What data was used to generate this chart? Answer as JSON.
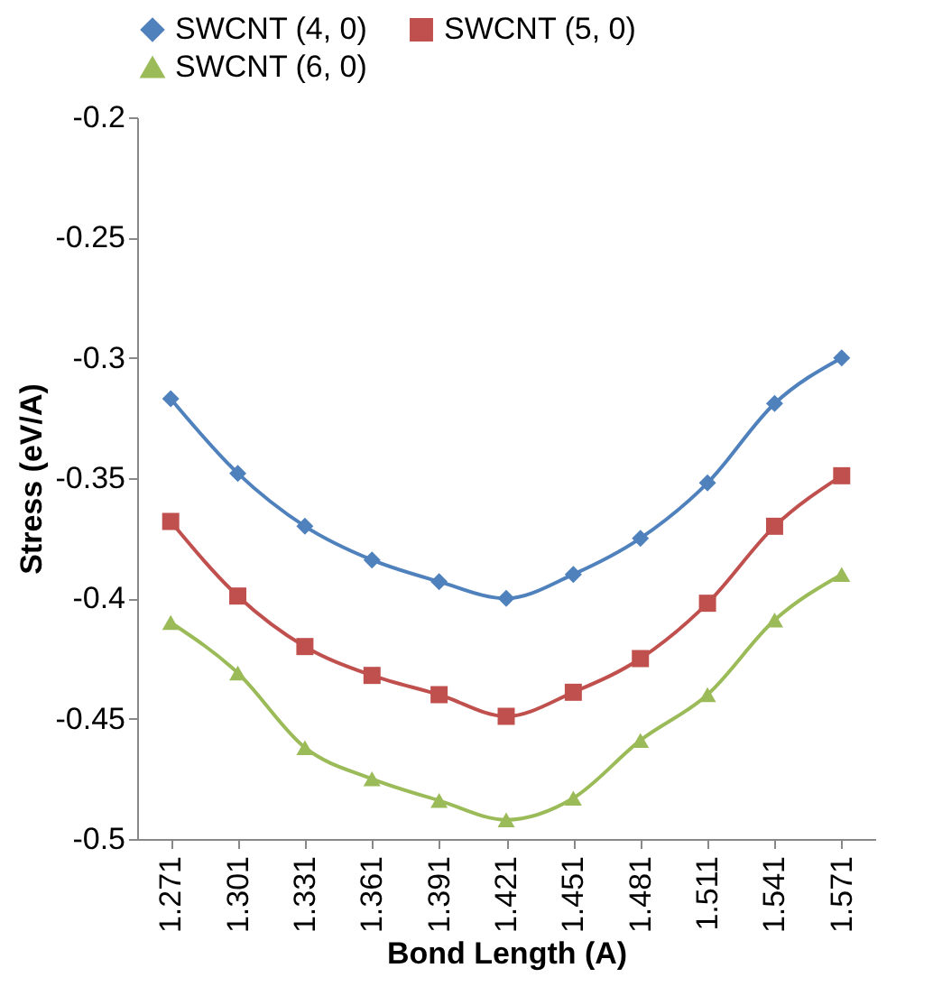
{
  "chart_data": {
    "type": "line",
    "xlabel": "Bond Length (A)",
    "ylabel": "Stress (eV/A)",
    "categories": [
      "1.271",
      "1.301",
      "1.331",
      "1.361",
      "1.391",
      "1.421",
      "1.451",
      "1.481",
      "1.511",
      "1.541",
      "1.571"
    ],
    "series": [
      {
        "name": "SWCNT (4, 0)",
        "color": "#4f81bd",
        "marker": "diamond",
        "values": [
          -0.317,
          -0.348,
          -0.37,
          -0.384,
          -0.393,
          -0.4,
          -0.39,
          -0.375,
          -0.352,
          -0.319,
          -0.3
        ]
      },
      {
        "name": "SWCNT (5, 0)",
        "color": "#c0504d",
        "marker": "square",
        "values": [
          -0.368,
          -0.399,
          -0.42,
          -0.432,
          -0.44,
          -0.449,
          -0.439,
          -0.425,
          -0.402,
          -0.37,
          -0.349
        ]
      },
      {
        "name": "SWCNT (6, 0)",
        "color": "#9bbb59",
        "marker": "triangle",
        "values": [
          -0.41,
          -0.431,
          -0.462,
          -0.475,
          -0.484,
          -0.492,
          -0.483,
          -0.459,
          -0.44,
          -0.409,
          -0.39
        ]
      }
    ],
    "ylim": [
      -0.5,
      -0.2
    ],
    "yticks": [
      -0.5,
      -0.45,
      -0.4,
      -0.35,
      -0.3,
      -0.25,
      -0.2
    ],
    "grid": false,
    "legend": "top"
  }
}
